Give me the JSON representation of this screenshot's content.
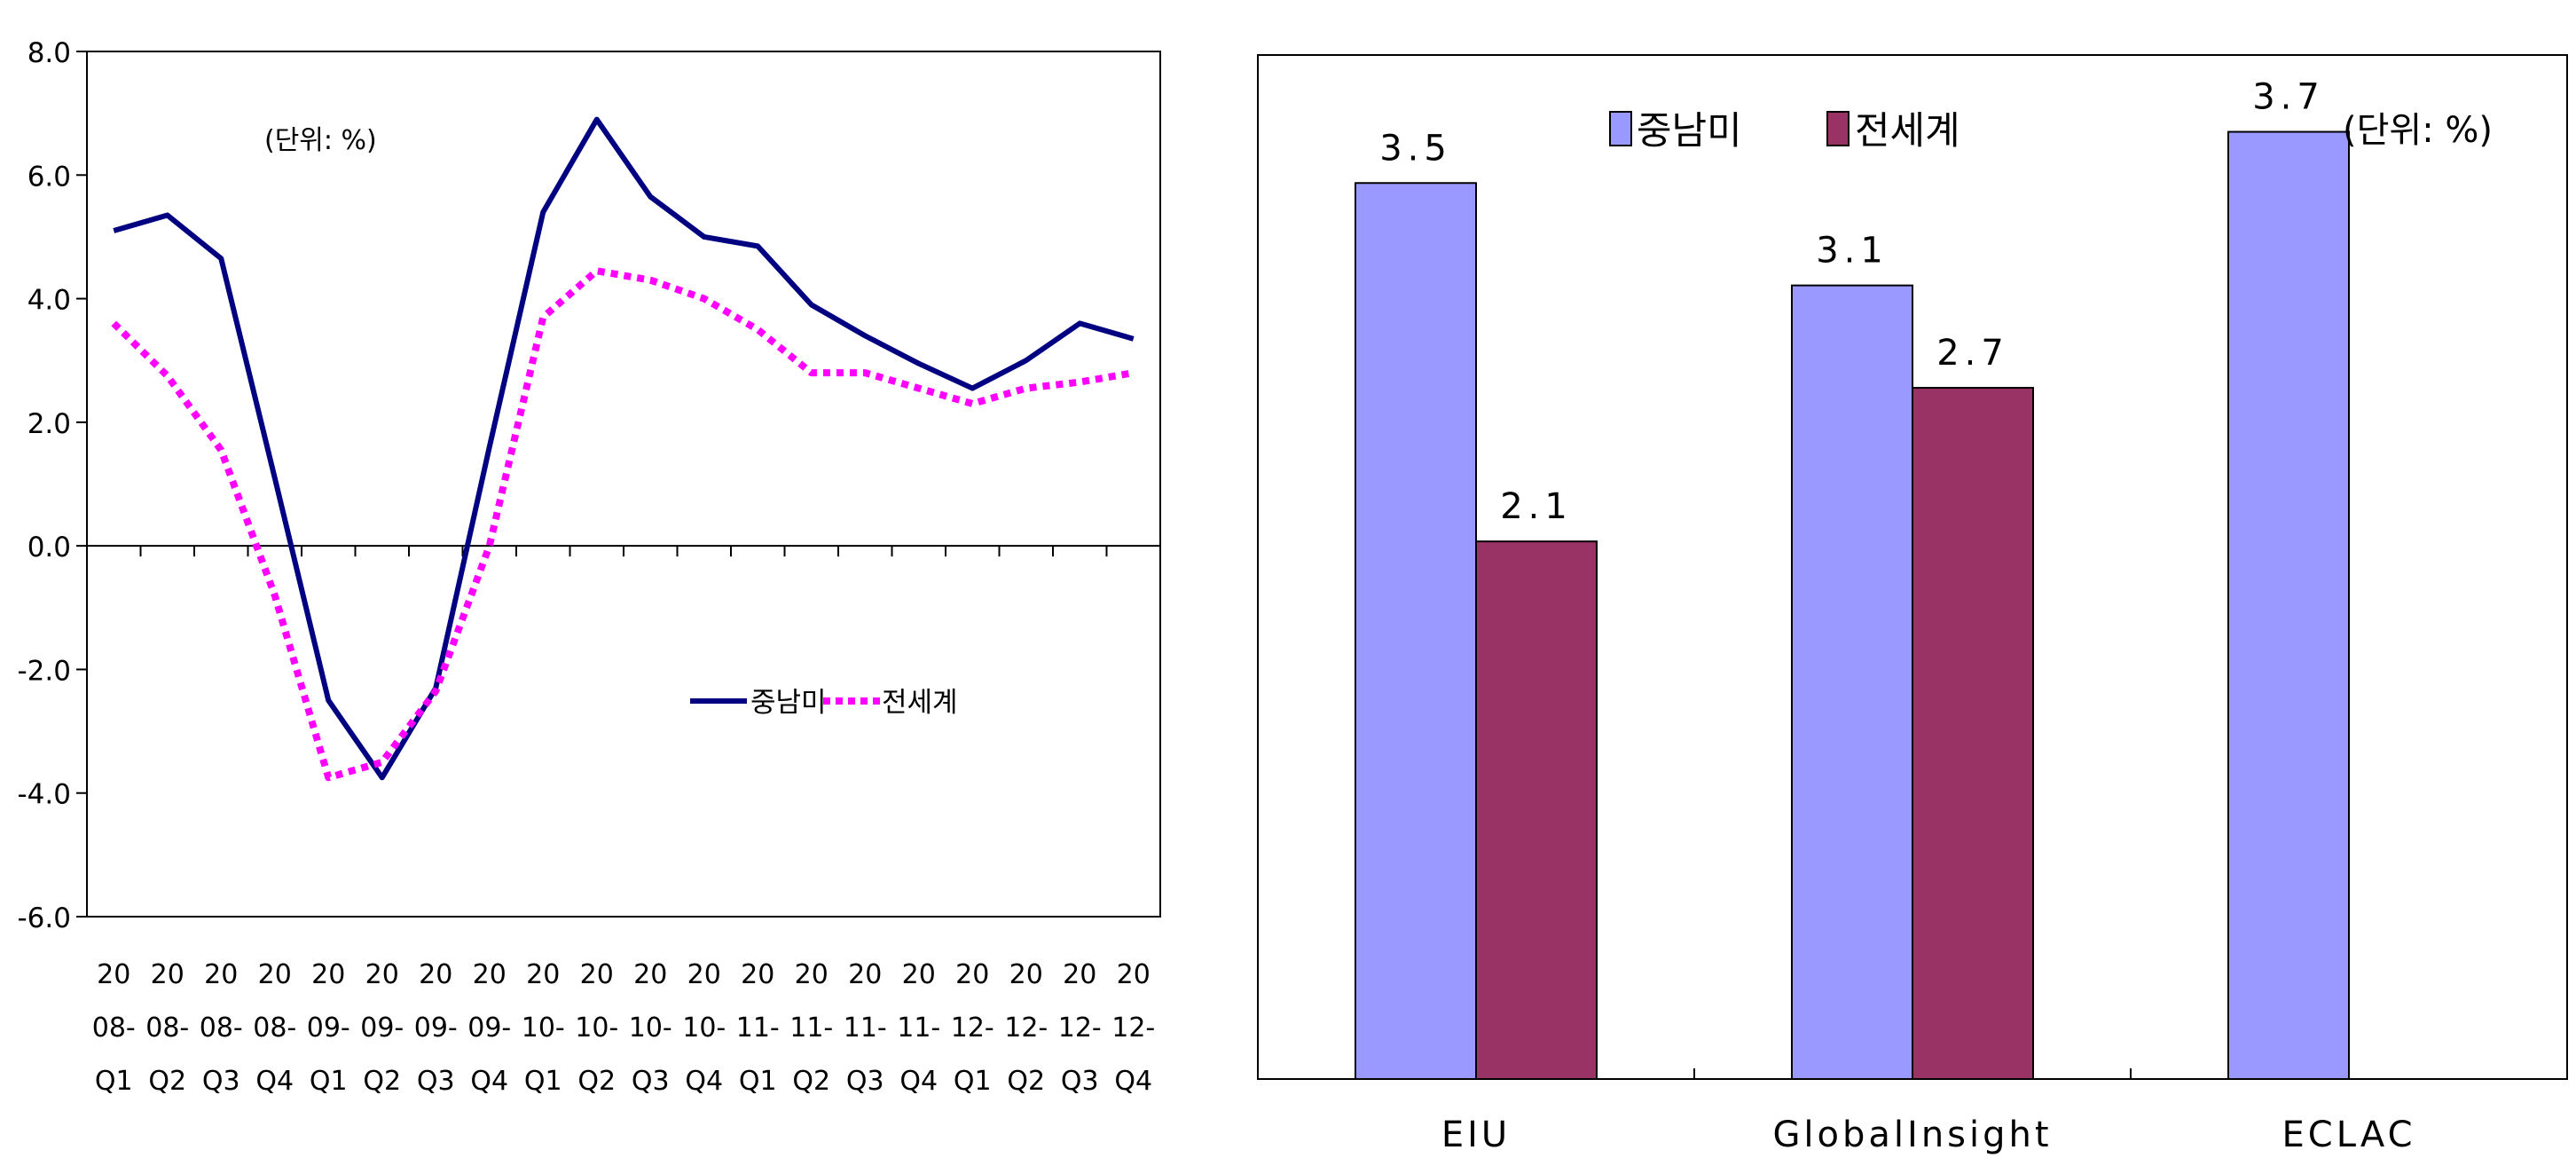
{
  "chart_data": [
    {
      "type": "line",
      "unit_label": "(단위: %)",
      "ylim": [
        -6.0,
        8.0
      ],
      "y_ticks": [
        "8.0",
        "6.0",
        "4.0",
        "2.0",
        "0.0",
        "-2.0",
        "-4.0",
        "-6.0"
      ],
      "categories": [
        [
          "20",
          "08-",
          "Q1"
        ],
        [
          "20",
          "08-",
          "Q2"
        ],
        [
          "20",
          "08-",
          "Q3"
        ],
        [
          "20",
          "08-",
          "Q4"
        ],
        [
          "20",
          "09-",
          "Q1"
        ],
        [
          "20",
          "09-",
          "Q2"
        ],
        [
          "20",
          "09-",
          "Q3"
        ],
        [
          "20",
          "09-",
          "Q4"
        ],
        [
          "20",
          "10-",
          "Q1"
        ],
        [
          "20",
          "10-",
          "Q2"
        ],
        [
          "20",
          "10-",
          "Q3"
        ],
        [
          "20",
          "10-",
          "Q4"
        ],
        [
          "20",
          "11-",
          "Q1"
        ],
        [
          "20",
          "11-",
          "Q2"
        ],
        [
          "20",
          "11-",
          "Q3"
        ],
        [
          "20",
          "11-",
          "Q4"
        ],
        [
          "20",
          "12-",
          "Q1"
        ],
        [
          "20",
          "12-",
          "Q2"
        ],
        [
          "20",
          "12-",
          "Q3"
        ],
        [
          "20",
          "12-",
          "Q4"
        ]
      ],
      "series": [
        {
          "name": "중남미",
          "color": "#000080",
          "style": "solid",
          "values": [
            5.1,
            5.35,
            4.65,
            1.1,
            -2.5,
            -3.75,
            -2.3,
            1.6,
            5.4,
            6.9,
            5.65,
            5.0,
            4.85,
            3.9,
            3.4,
            2.95,
            2.55,
            3.0,
            3.6,
            3.35
          ]
        },
        {
          "name": "전세계",
          "color": "#ff00ff",
          "style": "dotted",
          "values": [
            3.6,
            2.75,
            1.55,
            -0.8,
            -3.75,
            -3.5,
            -2.35,
            0.0,
            3.7,
            4.45,
            4.3,
            4.0,
            3.5,
            2.8,
            2.8,
            2.55,
            2.3,
            2.55,
            2.65,
            2.8
          ]
        }
      ],
      "legend": "right-middle",
      "grid": false
    },
    {
      "type": "bar",
      "unit_label": "(단위: %)",
      "categories": [
        "EIU",
        "GlobalInsight",
        "ECLAC"
      ],
      "ylim": [
        0,
        4.0
      ],
      "series": [
        {
          "name": "중남미",
          "color": "#9999ff",
          "values": [
            3.5,
            3.1,
            3.7
          ]
        },
        {
          "name": "전세계",
          "color": "#993366",
          "values": [
            2.1,
            2.7,
            null
          ]
        }
      ],
      "labels": [
        [
          "3.5",
          "2.1"
        ],
        [
          "3.1",
          "2.7"
        ],
        [
          "3.7",
          ""
        ]
      ],
      "legend": "top",
      "grid": false
    }
  ]
}
